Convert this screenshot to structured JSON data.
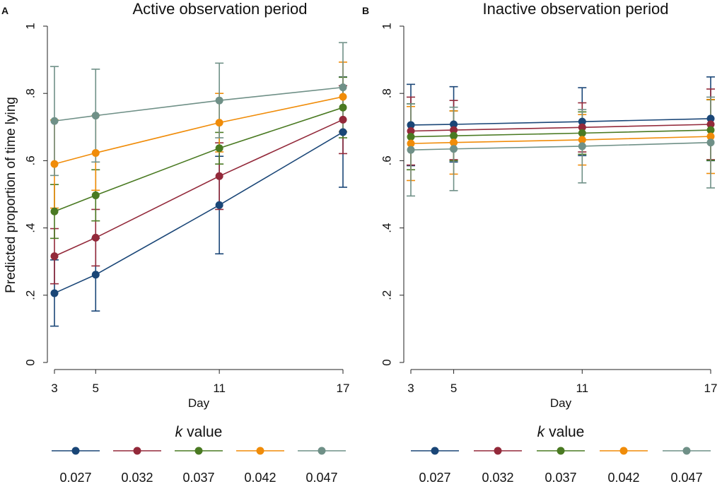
{
  "y_axis_label": "Predicted proportion of time lying",
  "legend_title_k": "k",
  "legend_title_rest": "value",
  "chart_data": [
    {
      "panel_letter": "A",
      "type": "line",
      "title": "Active observation period",
      "xlabel": "Day",
      "ylabel": "Predicted proportion of time lying",
      "x": [
        3,
        5,
        11,
        17
      ],
      "xticks": [
        "3",
        "5",
        "11",
        "17"
      ],
      "xlim": [
        3,
        17
      ],
      "ylim": [
        0,
        1
      ],
      "yticks": [
        "0",
        ".2",
        ".4",
        ".6",
        ".8",
        "1"
      ],
      "series": [
        {
          "name": "0.027",
          "color": "#1a4677",
          "values": [
            0.206,
            0.261,
            0.468,
            0.685
          ],
          "lower": [
            0.108,
            0.153,
            0.323,
            0.521
          ],
          "upper": [
            0.305,
            0.369,
            0.613,
            0.849
          ]
        },
        {
          "name": "0.032",
          "color": "#93293a",
          "values": [
            0.316,
            0.371,
            0.554,
            0.722
          ],
          "lower": [
            0.234,
            0.287,
            0.455,
            0.621
          ],
          "upper": [
            0.398,
            0.455,
            0.653,
            0.823
          ]
        },
        {
          "name": "0.037",
          "color": "#4a7a22",
          "values": [
            0.449,
            0.497,
            0.637,
            0.758
          ],
          "lower": [
            0.369,
            0.421,
            0.59,
            0.668
          ],
          "upper": [
            0.529,
            0.573,
            0.684,
            0.848
          ]
        },
        {
          "name": "0.042",
          "color": "#f08c09",
          "values": [
            0.59,
            0.623,
            0.713,
            0.79
          ],
          "lower": [
            0.459,
            0.512,
            0.626,
            0.687
          ],
          "upper": [
            0.721,
            0.734,
            0.8,
            0.893
          ]
        },
        {
          "name": "0.047",
          "color": "#6f9087",
          "values": [
            0.718,
            0.734,
            0.779,
            0.818
          ],
          "lower": [
            0.556,
            0.596,
            0.668,
            0.685
          ],
          "upper": [
            0.88,
            0.872,
            0.89,
            0.951
          ]
        }
      ],
      "legend": {
        "title": "k value",
        "position": "bottom",
        "labels": [
          "0.027",
          "0.032",
          "0.037",
          "0.042",
          "0.047"
        ]
      }
    },
    {
      "panel_letter": "B",
      "type": "line",
      "title": "Inactive observation period",
      "xlabel": "Day",
      "ylabel": "",
      "x": [
        3,
        5,
        11,
        17
      ],
      "xticks": [
        "3",
        "5",
        "11",
        "17"
      ],
      "xlim": [
        3,
        17
      ],
      "ylim": [
        0,
        1
      ],
      "yticks": [
        "0",
        ".2",
        ".4",
        ".6",
        ".8",
        "1"
      ],
      "series": [
        {
          "name": "0.027",
          "color": "#1a4677",
          "values": [
            0.706,
            0.708,
            0.716,
            0.725
          ],
          "lower": [
            0.585,
            0.596,
            0.615,
            0.6
          ],
          "upper": [
            0.827,
            0.82,
            0.817,
            0.849
          ]
        },
        {
          "name": "0.032",
          "color": "#93293a",
          "values": [
            0.688,
            0.691,
            0.699,
            0.708
          ],
          "lower": [
            0.587,
            0.603,
            0.626,
            0.603
          ],
          "upper": [
            0.789,
            0.779,
            0.772,
            0.813
          ]
        },
        {
          "name": "0.037",
          "color": "#4a7a22",
          "values": [
            0.671,
            0.674,
            0.682,
            0.691
          ],
          "lower": [
            0.573,
            0.6,
            0.619,
            0.601
          ],
          "upper": [
            0.769,
            0.748,
            0.745,
            0.781
          ]
        },
        {
          "name": "0.042",
          "color": "#f08c09",
          "values": [
            0.651,
            0.654,
            0.662,
            0.672
          ],
          "lower": [
            0.541,
            0.56,
            0.587,
            0.562
          ],
          "upper": [
            0.761,
            0.748,
            0.737,
            0.782
          ]
        },
        {
          "name": "0.047",
          "color": "#6f9087",
          "values": [
            0.632,
            0.635,
            0.643,
            0.654
          ],
          "lower": [
            0.495,
            0.511,
            0.534,
            0.519
          ],
          "upper": [
            0.769,
            0.759,
            0.752,
            0.789
          ]
        }
      ],
      "legend": {
        "title": "k value",
        "position": "bottom",
        "labels": [
          "0.027",
          "0.032",
          "0.037",
          "0.042",
          "0.047"
        ]
      }
    }
  ]
}
